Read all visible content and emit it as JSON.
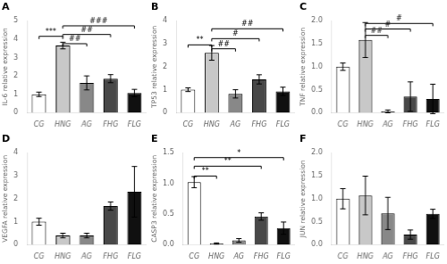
{
  "chart_data": [
    {
      "type": "bar",
      "title": "A",
      "ylabel": "IL-6 relative expression",
      "categories": [
        "CG",
        "HNG",
        "AG",
        "FHG",
        "FLG"
      ],
      "values": [
        1.0,
        3.65,
        1.62,
        1.85,
        1.07
      ],
      "errors": [
        0.12,
        0.18,
        0.38,
        0.22,
        0.2
      ],
      "colors": [
        "white",
        "#c8c8c8",
        "#888888",
        "#484848",
        "#101010"
      ],
      "ylim": [
        0,
        5
      ],
      "yticks": [
        0,
        1,
        2,
        3,
        4,
        5
      ],
      "grid": false,
      "annotations": [
        {
          "x1": "CG",
          "x2": "HNG",
          "y": 4.15,
          "label": "***"
        },
        {
          "x1": "HNG",
          "x2": "AG",
          "y": 3.75,
          "label": "##"
        },
        {
          "x1": "HNG",
          "x2": "FHG",
          "y": 4.25,
          "label": "##"
        },
        {
          "x1": "HNG",
          "x2": "FLG",
          "y": 4.72,
          "label": "###"
        }
      ]
    },
    {
      "type": "bar",
      "title": "B",
      "ylabel": "TP53 relative expression",
      "categories": [
        "CG",
        "HNG",
        "AG",
        "FHG",
        "FLG"
      ],
      "values": [
        1.0,
        2.6,
        0.82,
        1.45,
        0.93
      ],
      "errors": [
        0.08,
        0.32,
        0.18,
        0.2,
        0.18
      ],
      "colors": [
        "white",
        "#c8c8c8",
        "#888888",
        "#484848",
        "#101010"
      ],
      "ylim": [
        0,
        4
      ],
      "yticks": [
        0,
        1,
        2,
        3,
        4
      ],
      "grid": false,
      "annotations": [
        {
          "x1": "CG",
          "x2": "HNG",
          "y": 2.95,
          "label": "**"
        },
        {
          "x1": "HNG",
          "x2": "AG",
          "y": 2.78,
          "label": "##"
        },
        {
          "x1": "HNG",
          "x2": "FHG",
          "y": 3.22,
          "label": "#"
        },
        {
          "x1": "HNG",
          "x2": "FLG",
          "y": 3.65,
          "label": "##"
        }
      ]
    },
    {
      "type": "bar",
      "title": "C",
      "ylabel": "TNF relative expression",
      "categories": [
        "CG",
        "HNG",
        "AG",
        "FHG",
        "FLG"
      ],
      "values": [
        1.0,
        1.58,
        0.03,
        0.35,
        0.3
      ],
      "errors": [
        0.08,
        0.38,
        0.03,
        0.32,
        0.32
      ],
      "colors": [
        "white",
        "#c8c8c8",
        "#888888",
        "#484848",
        "#101010"
      ],
      "ylim": [
        0,
        2.0
      ],
      "yticks": [
        {
          "value": 0,
          "label": "0.0"
        },
        0.5,
        {
          "value": 1,
          "label": "1.0"
        },
        1.5,
        {
          "value": 2,
          "label": "2.0"
        }
      ],
      "grid": false,
      "annotations": [
        {
          "x1": "HNG",
          "x2": "AG",
          "y": 1.68,
          "label": "##"
        },
        {
          "x1": "HNG",
          "x2": "FHG",
          "y": 1.82,
          "label": "#"
        },
        {
          "x1": "HNG",
          "x2": "FLG",
          "y": 1.94,
          "label": "#"
        }
      ]
    },
    {
      "type": "bar",
      "title": "D",
      "ylabel": "VEGFA relative expression",
      "categories": [
        "CG",
        "HNG",
        "AG",
        "FHG",
        "FLG"
      ],
      "values": [
        1.0,
        0.4,
        0.4,
        1.68,
        2.3
      ],
      "errors": [
        0.15,
        0.1,
        0.1,
        0.18,
        1.1
      ],
      "colors": [
        "white",
        "#c8c8c8",
        "#888888",
        "#484848",
        "#101010"
      ],
      "ylim": [
        0,
        4
      ],
      "yticks": [
        0,
        1,
        2,
        3,
        4
      ],
      "grid": false,
      "annotations": []
    },
    {
      "type": "bar",
      "title": "E",
      "ylabel": "CASP3 relative expression",
      "categories": [
        "CG",
        "HNG",
        "AG",
        "FHG",
        "FLG"
      ],
      "values": [
        1.02,
        0.02,
        0.07,
        0.46,
        0.27
      ],
      "errors": [
        0.09,
        0.01,
        0.03,
        0.06,
        0.1
      ],
      "colors": [
        "white",
        "#c8c8c8",
        "#888888",
        "#484848",
        "#101010"
      ],
      "ylim": [
        0,
        1.5
      ],
      "yticks": [
        {
          "value": 0,
          "label": "0.0"
        },
        0.5,
        {
          "value": 1,
          "label": "1.0"
        },
        1.5
      ],
      "grid": false,
      "annotations": [
        {
          "x1": "CG",
          "x2": "HNG",
          "y": 1.12,
          "label": "**"
        },
        {
          "x1": "CG",
          "x2": "FHG",
          "y": 1.28,
          "label": "**"
        },
        {
          "x1": "CG",
          "x2": "FLG",
          "y": 1.42,
          "label": "*"
        }
      ]
    },
    {
      "type": "bar",
      "title": "F",
      "ylabel": "JUN relative expression",
      "categories": [
        "CG",
        "HNG",
        "AG",
        "FHG",
        "FLG"
      ],
      "values": [
        1.0,
        1.07,
        0.68,
        0.22,
        0.67
      ],
      "errors": [
        0.22,
        0.42,
        0.35,
        0.1,
        0.1
      ],
      "colors": [
        "white",
        "#c8c8c8",
        "#888888",
        "#484848",
        "#101010"
      ],
      "ylim": [
        0,
        2.0
      ],
      "yticks": [
        {
          "value": 0,
          "label": "0.0"
        },
        0.5,
        {
          "value": 1,
          "label": "1.0"
        },
        1.5,
        {
          "value": 2,
          "label": "2.0"
        }
      ],
      "grid": false,
      "annotations": []
    }
  ]
}
